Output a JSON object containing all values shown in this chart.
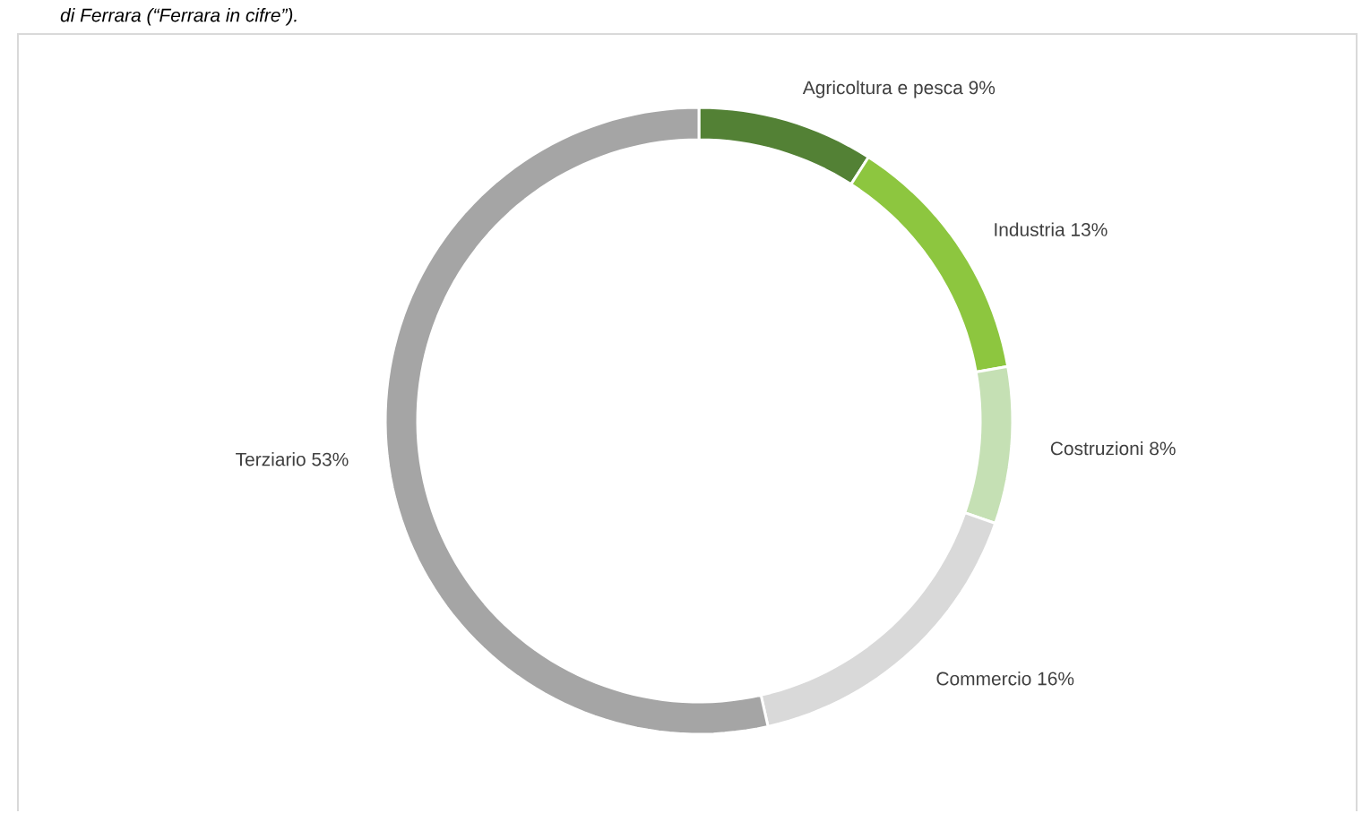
{
  "chart_data": {
    "type": "donut",
    "annotations": [
      "di Ferrara (“Ferrara in cifre”)."
    ],
    "categories": [
      "Agricoltura e pesca 9%",
      "Industria 13%",
      "Costruzioni 8%",
      "Commercio 16%",
      "Terziario 53%"
    ],
    "values": [
      9,
      13,
      8,
      16,
      53
    ],
    "colors": [
      "#538135",
      "#8dc63f",
      "#c5e0b4",
      "#d9d9d9",
      "#a5a5a5"
    ]
  }
}
